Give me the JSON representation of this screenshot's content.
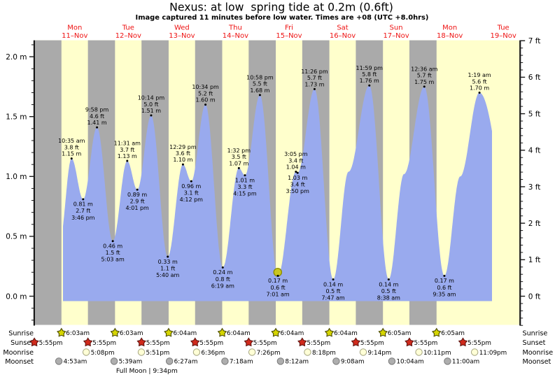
{
  "title": "Nexus: at low  spring tide at 0.2m (0.6ft)",
  "subtitle": "Image captured 11 minutes before low water. Times are +08 (UTC +8.0hrs)",
  "colors": {
    "background": "#ffffff",
    "band_day": "#ffffcc",
    "band_night": "#aaaaaa",
    "tide_fill": "#99aaee",
    "day_label_red": "#ee1111",
    "text_black": "#000000",
    "axis": "#1a1a1a",
    "sunrise_star_fill": "#d6d600",
    "sunrise_star_stroke": "#4a4a00",
    "sunset_star_fill": "#d02a1c",
    "sunset_star_stroke": "#5f1410",
    "moonrise_circle_fill": "#ffffd6",
    "moonrise_circle_stroke": "#a3a37f",
    "moonset_circle_fill": "#aeaeae",
    "moonset_circle_stroke": "#7a7a7a",
    "current_marker_fill": "#c9c61f",
    "current_marker_stroke": "#8b8b00"
  },
  "chart_data": {
    "type": "area",
    "title": "Nexus: at low  spring tide at 0.2m (0.6ft)",
    "left_axis": {
      "unit": "m",
      "tick_labels": [
        "0.0 m",
        "0.5 m",
        "1.0 m",
        "1.5 m",
        "2.0 m"
      ],
      "minor_step_m": 0.1
    },
    "right_axis": {
      "unit": "ft",
      "tick_labels": [
        "0 ft",
        "1 ft",
        "2 ft",
        "3 ft",
        "4 ft",
        "5 ft",
        "6 ft",
        "7 ft"
      ],
      "minor_step_ft": 0.2
    },
    "ylim_m": [
      -0.24,
      2.14
    ],
    "grid": "off",
    "days": [
      {
        "weekday": "Mon",
        "date": "11–Nov"
      },
      {
        "weekday": "Tue",
        "date": "12–Nov"
      },
      {
        "weekday": "Wed",
        "date": "13–Nov"
      },
      {
        "weekday": "Thu",
        "date": "14–Nov"
      },
      {
        "weekday": "Fri",
        "date": "15–Nov"
      },
      {
        "weekday": "Sat",
        "date": "16–Nov"
      },
      {
        "weekday": "Sun",
        "date": "17–Nov"
      },
      {
        "weekday": "Mon",
        "date": "18–Nov"
      },
      {
        "weekday": "Tue",
        "date": "19–Nov"
      }
    ],
    "tide_events": [
      {
        "day": 0,
        "time": "10:35 am",
        "ft_label": "3.8 ft",
        "m_label": "1.15 m",
        "value_m": 1.15,
        "type": "high"
      },
      {
        "day": 0,
        "time": "3:46 pm",
        "ft_label": "2.7 ft",
        "m_label": "0.81 m",
        "value_m": 0.81,
        "type": "low"
      },
      {
        "day": 0,
        "time": "9:58 pm",
        "ft_label": "4.6 ft",
        "m_label": "1.41 m",
        "value_m": 1.41,
        "type": "high"
      },
      {
        "day": 1,
        "time": "5:03 am",
        "ft_label": "1.5 ft",
        "m_label": "0.46 m",
        "value_m": 0.46,
        "type": "low"
      },
      {
        "day": 1,
        "time": "11:31 am",
        "ft_label": "3.7 ft",
        "m_label": "1.13 m",
        "value_m": 1.13,
        "type": "high"
      },
      {
        "day": 1,
        "time": "4:01 pm",
        "ft_label": "2.9 ft",
        "m_label": "0.89 m",
        "value_m": 0.89,
        "type": "low"
      },
      {
        "day": 1,
        "time": "10:14 pm",
        "ft_label": "5.0 ft",
        "m_label": "1.51 m",
        "value_m": 1.51,
        "type": "high"
      },
      {
        "day": 2,
        "time": "5:40 am",
        "ft_label": "1.1 ft",
        "m_label": "0.33 m",
        "value_m": 0.33,
        "type": "low"
      },
      {
        "day": 2,
        "time": "12:29 pm",
        "ft_label": "3.6 ft",
        "m_label": "1.10 m",
        "value_m": 1.1,
        "type": "high"
      },
      {
        "day": 2,
        "time": "4:12 pm",
        "ft_label": "3.1 ft",
        "m_label": "0.96 m",
        "value_m": 0.96,
        "type": "low"
      },
      {
        "day": 2,
        "time": "10:34 pm",
        "ft_label": "5.2 ft",
        "m_label": "1.60 m",
        "value_m": 1.6,
        "type": "high"
      },
      {
        "day": 3,
        "time": "6:19 am",
        "ft_label": "0.8 ft",
        "m_label": "0.24 m",
        "value_m": 0.24,
        "type": "low"
      },
      {
        "day": 3,
        "time": "1:32 pm",
        "ft_label": "3.5 ft",
        "m_label": "1.07 m",
        "value_m": 1.07,
        "type": "high"
      },
      {
        "day": 3,
        "time": "4:15 pm",
        "ft_label": "3.3 ft",
        "m_label": "1.01 m",
        "value_m": 1.01,
        "type": "low"
      },
      {
        "day": 3,
        "time": "10:58 pm",
        "ft_label": "5.5 ft",
        "m_label": "1.68 m",
        "value_m": 1.68,
        "type": "high"
      },
      {
        "day": 4,
        "time": "7:01 am",
        "ft_label": "0.6 ft",
        "m_label": "0.17 m",
        "value_m": 0.17,
        "type": "low",
        "current": true
      },
      {
        "day": 4,
        "time": "3:05 pm",
        "ft_label": "3.4 ft",
        "m_label": "1.04 m",
        "value_m": 1.04,
        "type": "high"
      },
      {
        "day": 4,
        "time": "3:50 pm",
        "ft_label": "3.4 ft",
        "m_label": "1.03 m",
        "value_m": 1.03,
        "type": "low"
      },
      {
        "day": 4,
        "time": "11:26 pm",
        "ft_label": "5.7 ft",
        "m_label": "1.73 m",
        "value_m": 1.73,
        "type": "high"
      },
      {
        "day": 5,
        "time": "7:47 am",
        "ft_label": "0.5 ft",
        "m_label": "0.14 m",
        "value_m": 0.14,
        "type": "low"
      },
      {
        "day": 5,
        "time": "11:59 pm",
        "ft_label": "5.8 ft",
        "m_label": "1.76 m",
        "value_m": 1.76,
        "type": "high"
      },
      {
        "day": 6,
        "time": "8:38 am",
        "ft_label": "0.5 ft",
        "m_label": "0.14 m",
        "value_m": 0.14,
        "type": "low"
      },
      {
        "day": 7,
        "time": "12:36 am",
        "ft_label": "5.7 ft",
        "m_label": "1.75 m",
        "value_m": 1.75,
        "type": "high"
      },
      {
        "day": 7,
        "time": "9:35 am",
        "ft_label": "0.6 ft",
        "m_label": "0.17 m",
        "value_m": 0.17,
        "type": "low"
      },
      {
        "day": 8,
        "time": "1:19 am",
        "ft_label": "5.6 ft",
        "m_label": "1.70 m",
        "value_m": 1.7,
        "type": "high"
      }
    ],
    "curve_shape_points": [
      {
        "day": 5,
        "time": "2:40 pm",
        "value_m": 1.04
      },
      {
        "day": 6,
        "time": "3:30 pm",
        "value_m": 1.02
      },
      {
        "day": 7,
        "time": "4:40 pm",
        "value_m": 1.0
      }
    ]
  },
  "astro": {
    "rows": [
      {
        "label": "Sunrise",
        "icon": "sunrise-star-icon",
        "entries": [
          {
            "day": 0,
            "time": "6:03am"
          },
          {
            "day": 1,
            "time": "6:03am"
          },
          {
            "day": 2,
            "time": "6:04am"
          },
          {
            "day": 3,
            "time": "6:04am"
          },
          {
            "day": 4,
            "time": "6:04am"
          },
          {
            "day": 5,
            "time": "6:04am"
          },
          {
            "day": 6,
            "time": "6:05am"
          },
          {
            "day": 7,
            "time": "6:05am"
          }
        ]
      },
      {
        "label": "Sunset",
        "icon": "sunset-star-icon",
        "entries": [
          {
            "day": -1,
            "time": "5:55pm"
          },
          {
            "day": 0,
            "time": "5:55pm"
          },
          {
            "day": 1,
            "time": "5:55pm"
          },
          {
            "day": 2,
            "time": "5:55pm"
          },
          {
            "day": 3,
            "time": "5:55pm"
          },
          {
            "day": 4,
            "time": "5:55pm"
          },
          {
            "day": 5,
            "time": "5:55pm"
          },
          {
            "day": 6,
            "time": "5:55pm"
          },
          {
            "day": 7,
            "time": "5:55pm"
          }
        ]
      },
      {
        "label": "Moonrise",
        "icon": "moonrise-circle-icon",
        "entries": [
          {
            "day": 0,
            "time": "5:08pm"
          },
          {
            "day": 1,
            "time": "5:51pm"
          },
          {
            "day": 2,
            "time": "6:36pm"
          },
          {
            "day": 3,
            "time": "7:26pm"
          },
          {
            "day": 4,
            "time": "8:18pm"
          },
          {
            "day": 5,
            "time": "9:14pm"
          },
          {
            "day": 6,
            "time": "10:11pm"
          },
          {
            "day": 7,
            "time": "11:09pm"
          }
        ]
      },
      {
        "label": "Moonset",
        "icon": "moonset-circle-icon",
        "entries": [
          {
            "day": 0,
            "time": "4:53am"
          },
          {
            "day": 1,
            "time": "5:39am"
          },
          {
            "day": 2,
            "time": "6:27am"
          },
          {
            "day": 3,
            "time": "7:18am"
          },
          {
            "day": 4,
            "time": "8:12am"
          },
          {
            "day": 5,
            "time": "9:08am"
          },
          {
            "day": 6,
            "time": "10:04am"
          },
          {
            "day": 7,
            "time": "11:00am"
          }
        ]
      }
    ],
    "moon_phase": {
      "label": "Full Moon | 9:34pm",
      "day": 1,
      "time": "9:34pm"
    }
  }
}
